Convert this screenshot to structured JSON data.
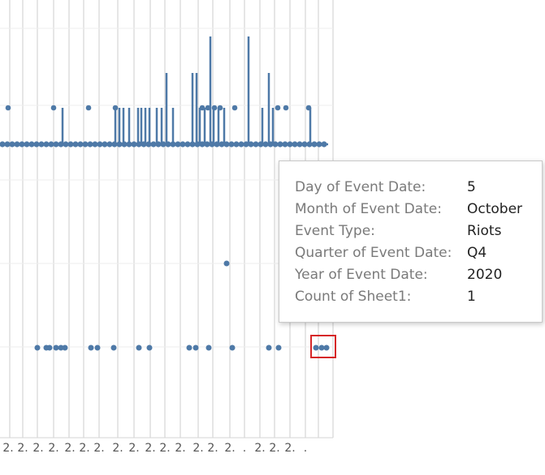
{
  "tooltip": {
    "rows": [
      {
        "label": "Day of Event Date:",
        "value": "5"
      },
      {
        "label": "Month of Event Date:",
        "value": "October"
      },
      {
        "label": "Event Type:",
        "value": "Riots"
      },
      {
        "label": "Quarter of Event Date:",
        "value": "Q4"
      },
      {
        "label": "Year of Event Date:",
        "value": "2020"
      },
      {
        "label": "Count of Sheet1:",
        "value": "1"
      }
    ]
  },
  "chart_data": {
    "type": "line",
    "xtick_labels": [
      "2.",
      "2.",
      "2.",
      "2.",
      "2.",
      "2.",
      "2.",
      "2.",
      "2.",
      "2.",
      "2.",
      "2.",
      "2.",
      "2.",
      "2.",
      ".",
      "2.",
      "2.",
      "2.",
      "."
    ],
    "series": [
      {
        "color": "#4e79a7"
      }
    ],
    "grid": true
  },
  "colors": {
    "mark": "#4e79a7",
    "highlight": "#d62728"
  }
}
